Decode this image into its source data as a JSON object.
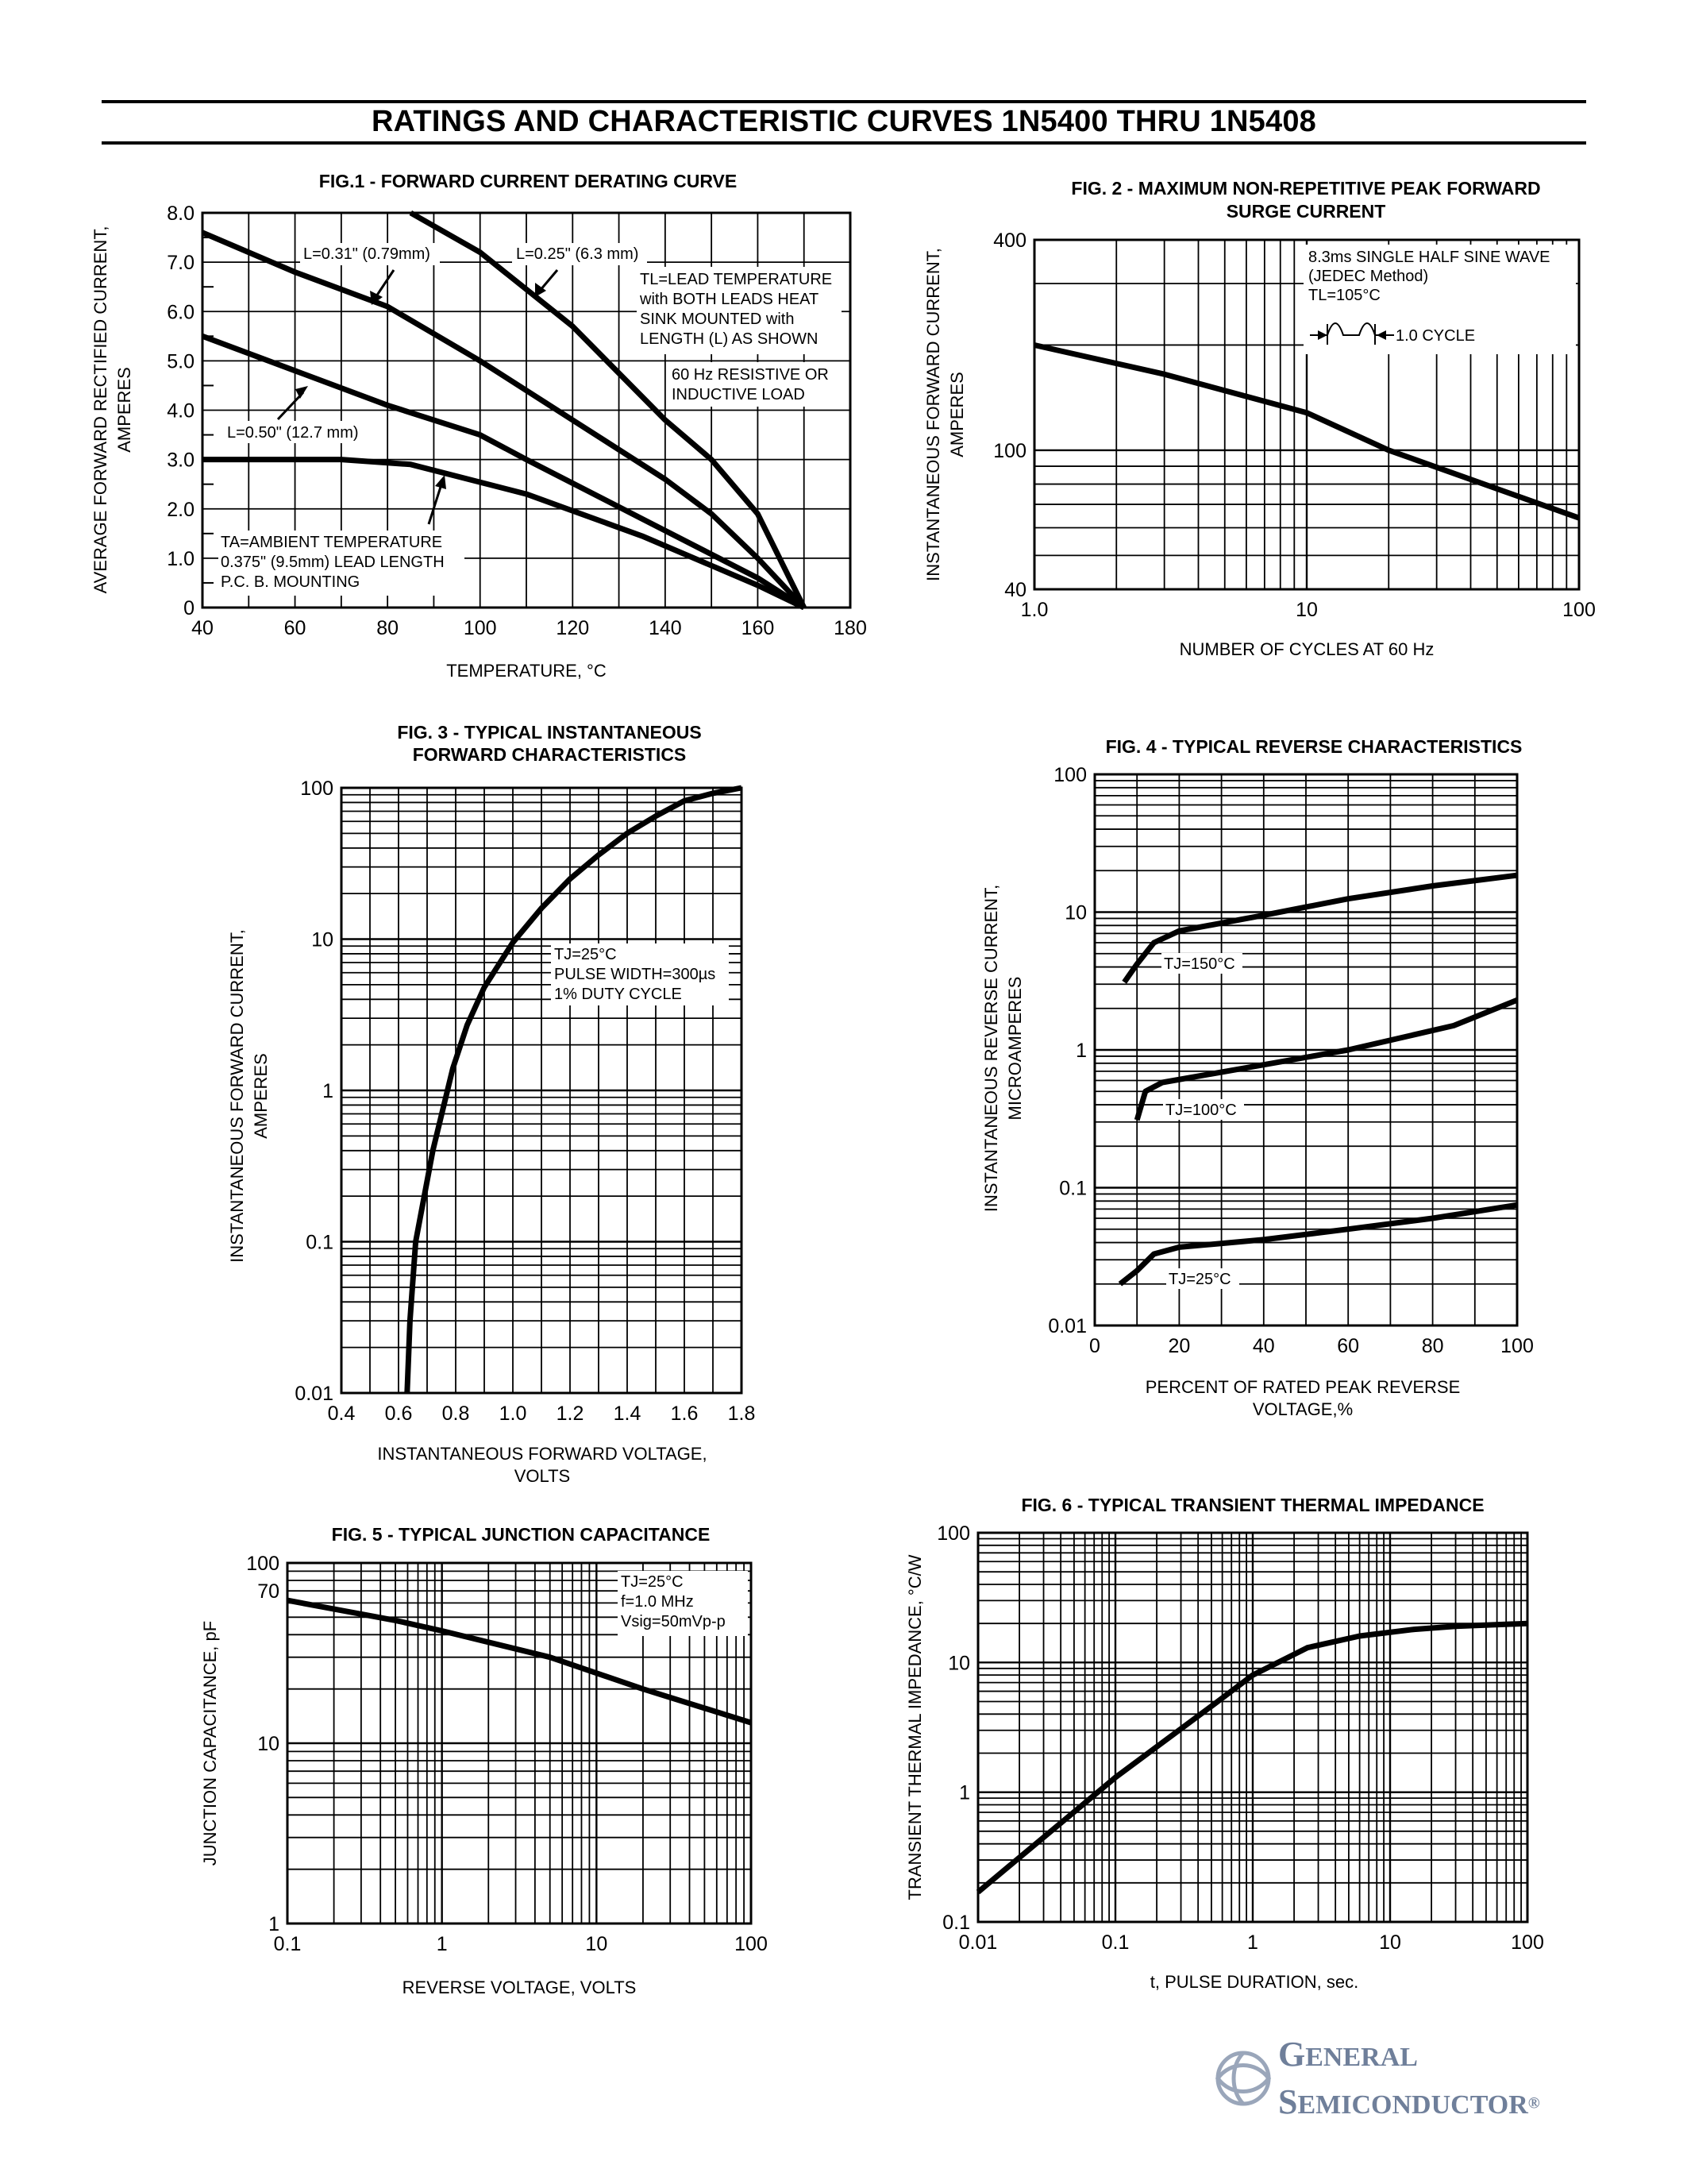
{
  "page_title": "RATINGS AND CHARACTERISTIC CURVES 1N5400 THRU 1N5408",
  "brand": {
    "line1_cap": "G",
    "line1_rest": "ENERAL",
    "line2_cap": "S",
    "line2_rest": "EMICONDUCTOR",
    "reg": "®",
    "color": "#6f7f9a"
  },
  "chart_data": [
    {
      "id": "fig1",
      "type": "line",
      "title": "FIG.1 - FORWARD CURRENT DERATING CURVE",
      "xlabel": "TEMPERATURE, °C",
      "ylabel": [
        "AVERAGE FORWARD RECTIFIED CURRENT,",
        "AMPERES"
      ],
      "xlim": [
        40,
        180
      ],
      "ylim": [
        0,
        8
      ],
      "xscale": "linear",
      "yscale": "linear",
      "x_ticks": [
        "40",
        "60",
        "80",
        "100",
        "120",
        "140",
        "160",
        "180"
      ],
      "y_ticks": [
        "0",
        "1.0",
        "2.0",
        "3.0",
        "4.0",
        "5.0",
        "6.0",
        "7.0",
        "8.0"
      ],
      "series": [
        {
          "name": "L=0.25\" (6.3 mm)",
          "points": [
            [
              85,
              8.0
            ],
            [
              100,
              7.2
            ],
            [
              120,
              5.7
            ],
            [
              140,
              3.8
            ],
            [
              150,
              3.0
            ],
            [
              160,
              1.9
            ],
            [
              170,
              0
            ]
          ]
        },
        {
          "name": "L=0.31\" (0.79mm)",
          "points": [
            [
              40,
              7.6
            ],
            [
              60,
              6.8
            ],
            [
              80,
              6.1
            ],
            [
              100,
              5.0
            ],
            [
              120,
              3.8
            ],
            [
              140,
              2.6
            ],
            [
              150,
              1.9
            ],
            [
              160,
              1.0
            ],
            [
              170,
              0
            ]
          ]
        },
        {
          "name": "L=0.50\" (12.7 mm)",
          "points": [
            [
              40,
              5.5
            ],
            [
              60,
              4.8
            ],
            [
              80,
              4.1
            ],
            [
              100,
              3.5
            ],
            [
              110,
              3.0
            ],
            [
              135,
              1.8
            ],
            [
              160,
              0.6
            ],
            [
              170,
              0
            ]
          ]
        },
        {
          "name": "TA=AMBIENT TEMPERATURE",
          "points": [
            [
              40,
              3.0
            ],
            [
              70,
              3.0
            ],
            [
              85,
              2.9
            ],
            [
              110,
              2.3
            ],
            [
              135,
              1.45
            ],
            [
              160,
              0.45
            ],
            [
              170,
              0
            ]
          ]
        }
      ],
      "curve_labels": [
        "L=0.31\" (0.79mm)",
        "L=0.25\" (6.3 mm)",
        "L=0.50\" (12.7 mm)"
      ],
      "notes": [
        "TL=LEAD TEMPERATURE",
        "with BOTH LEADS HEAT",
        "SINK MOUNTED with",
        "LENGTH (L) AS SHOWN"
      ],
      "notes2": [
        "60 Hz RESISTIVE OR",
        "INDUCTIVE LOAD"
      ],
      "notes3": [
        "TA=AMBIENT TEMPERATURE",
        "0.375\" (9.5mm) LEAD LENGTH",
        "P.C. B. MOUNTING"
      ]
    },
    {
      "id": "fig2",
      "type": "line",
      "title": "FIG. 2 - MAXIMUM NON-REPETITIVE PEAK FORWARD",
      "title2": "SURGE CURRENT",
      "xlabel": "NUMBER OF CYCLES AT 60 Hz",
      "ylabel": [
        "INSTANTANEOUS FORWARD CURRENT,",
        "AMPERES"
      ],
      "xlim": [
        1,
        100
      ],
      "ylim": [
        40,
        400
      ],
      "xscale": "log",
      "yscale": "log",
      "x_ticks": [
        "1.0",
        "10",
        "100"
      ],
      "y_ticks": [
        "40",
        "100",
        "400"
      ],
      "series": [
        {
          "name": "Peak surge",
          "points": [
            [
              1,
              200
            ],
            [
              3,
              165
            ],
            [
              10,
              128
            ],
            [
              20,
              100
            ],
            [
              100,
              64
            ]
          ]
        }
      ],
      "notes": [
        "8.3ms SINGLE HALF SINE WAVE",
        "(JEDEC Method)",
        "TL=105°C"
      ],
      "cycle_label": "1.0 CYCLE"
    },
    {
      "id": "fig3",
      "type": "line",
      "title": "FIG. 3 - TYPICAL INSTANTANEOUS",
      "title2": "FORWARD CHARACTERISTICS",
      "xlabel": [
        "INSTANTANEOUS FORWARD VOLTAGE,",
        "VOLTS"
      ],
      "ylabel": [
        "INSTANTANEOUS FORWARD CURRENT,",
        "AMPERES"
      ],
      "xlim": [
        0.4,
        1.8
      ],
      "ylim": [
        0.01,
        100
      ],
      "xscale": "linear",
      "yscale": "log",
      "x_ticks": [
        "0.4",
        "0.6",
        "0.8",
        "1.0",
        "1.2",
        "1.4",
        "1.6",
        "1.8"
      ],
      "y_ticks": [
        "0.01",
        "0.1",
        "1",
        "10",
        "100"
      ],
      "series": [
        {
          "name": "TJ=25°C",
          "points": [
            [
              0.63,
              0.01
            ],
            [
              0.64,
              0.03
            ],
            [
              0.66,
              0.1
            ],
            [
              0.72,
              0.4
            ],
            [
              0.79,
              1.4
            ],
            [
              0.84,
              2.7
            ],
            [
              0.9,
              4.8
            ],
            [
              1.0,
              9.5
            ],
            [
              1.1,
              16
            ],
            [
              1.2,
              25
            ],
            [
              1.3,
              36
            ],
            [
              1.4,
              50
            ],
            [
              1.5,
              65
            ],
            [
              1.6,
              82
            ],
            [
              1.7,
              92
            ],
            [
              1.8,
              100
            ]
          ]
        }
      ],
      "notes": [
        "TJ=25°C",
        "PULSE WIDTH=300µs",
        "1% DUTY CYCLE"
      ]
    },
    {
      "id": "fig4",
      "type": "line",
      "title": "FIG. 4 - TYPICAL REVERSE CHARACTERISTICS",
      "xlabel": [
        "PERCENT OF RATED PEAK REVERSE",
        "VOLTAGE,%"
      ],
      "ylabel": [
        "INSTANTANEOUS REVERSE  CURRENT,",
        "MICROAMPERES"
      ],
      "xlim": [
        0,
        100
      ],
      "ylim": [
        0.01,
        100
      ],
      "xscale": "linear",
      "yscale": "log",
      "x_ticks": [
        "0",
        "20",
        "40",
        "60",
        "80",
        "100"
      ],
      "y_ticks": [
        "0.01",
        "0.1",
        "1",
        "10",
        "100"
      ],
      "series": [
        {
          "name": "TJ=150°C",
          "points": [
            [
              7,
              3.1
            ],
            [
              10,
              4.2
            ],
            [
              14,
              6.0
            ],
            [
              20,
              7.3
            ],
            [
              40,
              9.5
            ],
            [
              60,
              12.5
            ],
            [
              80,
              15.5
            ],
            [
              100,
              18.5
            ]
          ]
        },
        {
          "name": "TJ=100°C",
          "points": [
            [
              10,
              0.31
            ],
            [
              12,
              0.5
            ],
            [
              16,
              0.58
            ],
            [
              40,
              0.78
            ],
            [
              60,
              1.0
            ],
            [
              85,
              1.5
            ],
            [
              100,
              2.3
            ]
          ]
        },
        {
          "name": "TJ=25°C",
          "points": [
            [
              6,
              0.02
            ],
            [
              10,
              0.025
            ],
            [
              14,
              0.033
            ],
            [
              20,
              0.037
            ],
            [
              40,
              0.042
            ],
            [
              60,
              0.05
            ],
            [
              80,
              0.06
            ],
            [
              100,
              0.075
            ]
          ]
        }
      ]
    },
    {
      "id": "fig5",
      "type": "line",
      "title": "FIG. 5 - TYPICAL JUNCTION CAPACITANCE",
      "xlabel": "REVERSE VOLTAGE, VOLTS",
      "ylabel": [
        "JUNCTION CAPACITANCE, pF"
      ],
      "xlim": [
        0.1,
        100
      ],
      "ylim": [
        1,
        100
      ],
      "xscale": "log",
      "yscale": "log",
      "x_ticks": [
        "0.1",
        "1",
        "10",
        "100"
      ],
      "y_ticks": [
        "1",
        "10",
        "70",
        "100"
      ],
      "series": [
        {
          "name": "TJ=25°C",
          "points": [
            [
              0.1,
              62
            ],
            [
              0.5,
              48
            ],
            [
              1,
              42
            ],
            [
              5,
              30
            ],
            [
              20,
              20
            ],
            [
              100,
              13
            ]
          ]
        }
      ],
      "notes": [
        "TJ=25°C",
        "f=1.0 MHz",
        "Vsig=50mVp-p"
      ]
    },
    {
      "id": "fig6",
      "type": "line",
      "title": "FIG. 6 - TYPICAL TRANSIENT THERMAL IMPEDANCE",
      "xlabel": "t, PULSE DURATION, sec.",
      "ylabel": [
        "TRANSIENT THERMAL IMPEDANCE, °C/W"
      ],
      "xlim": [
        0.01,
        100
      ],
      "ylim": [
        0.1,
        100
      ],
      "xscale": "log",
      "yscale": "log",
      "x_ticks": [
        "0.01",
        "0.1",
        "1",
        "10",
        "100"
      ],
      "y_ticks": [
        "0.1",
        "1",
        "10",
        "100"
      ],
      "series": [
        {
          "name": "Zth",
          "points": [
            [
              0.01,
              0.17
            ],
            [
              0.1,
              1.3
            ],
            [
              0.5,
              4.6
            ],
            [
              1,
              8
            ],
            [
              2.5,
              13
            ],
            [
              6,
              16
            ],
            [
              15,
              18
            ],
            [
              30,
              19
            ],
            [
              100,
              20
            ]
          ]
        }
      ]
    }
  ]
}
